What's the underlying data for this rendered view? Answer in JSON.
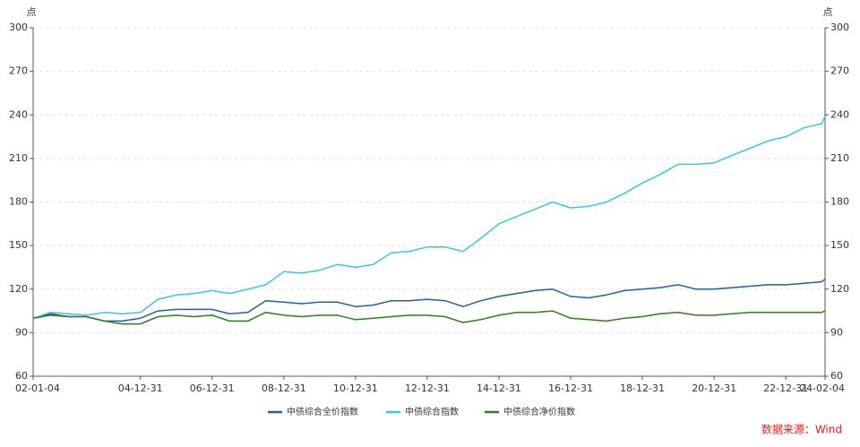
{
  "chart_data": {
    "type": "line",
    "y_label": "点",
    "y2_label": "点",
    "x": [
      "02-01-04",
      "02-06-30",
      "02-12-31",
      "03-06-30",
      "03-12-31",
      "04-06-30",
      "04-12-31",
      "05-06-30",
      "05-12-31",
      "06-06-30",
      "06-12-31",
      "07-06-30",
      "07-12-31",
      "08-06-30",
      "08-12-31",
      "09-06-30",
      "09-12-31",
      "10-06-30",
      "10-12-31",
      "11-06-30",
      "11-12-31",
      "12-06-30",
      "12-12-31",
      "13-06-30",
      "13-12-31",
      "14-06-30",
      "14-12-31",
      "15-06-30",
      "15-12-31",
      "16-06-30",
      "16-12-31",
      "17-06-30",
      "17-12-31",
      "18-06-30",
      "18-12-31",
      "19-06-30",
      "19-12-31",
      "20-06-30",
      "20-12-31",
      "21-06-30",
      "21-12-31",
      "22-06-30",
      "22-12-31",
      "23-06-30",
      "23-12-31",
      "24-02-04"
    ],
    "series": [
      {
        "name": "中债综合全价指数",
        "color": "#1f5fa6",
        "values": [
          100,
          103,
          101,
          101,
          98,
          98,
          100,
          105,
          106,
          106,
          106,
          103,
          104,
          112,
          111,
          110,
          111,
          111,
          108,
          109,
          112,
          112,
          113,
          112,
          108,
          112,
          115,
          117,
          119,
          120,
          115,
          114,
          116,
          119,
          120,
          121,
          123,
          120,
          120,
          121,
          122,
          123,
          123,
          124,
          125,
          127
        ]
      },
      {
        "name": "中债综合指数",
        "color": "#3cc6dc",
        "values": [
          100,
          104,
          103,
          102,
          104,
          103,
          104,
          113,
          116,
          117,
          119,
          117,
          120,
          123,
          132,
          131,
          133,
          137,
          135,
          137,
          145,
          146,
          149,
          149,
          146,
          155,
          165,
          170,
          175,
          180,
          176,
          177,
          180,
          186,
          193,
          199,
          206,
          206,
          207,
          212,
          217,
          222,
          225,
          231,
          234,
          239
        ]
      },
      {
        "name": "中债综合净价指数",
        "color": "#2e7d1e",
        "values": [
          100,
          102,
          101,
          101,
          98,
          96,
          96,
          101,
          102,
          101,
          102,
          98,
          98,
          104,
          102,
          101,
          102,
          102,
          99,
          100,
          101,
          102,
          102,
          101,
          97,
          99,
          102,
          104,
          104,
          105,
          100,
          99,
          98,
          100,
          101,
          103,
          104,
          102,
          102,
          103,
          104,
          104,
          104,
          104,
          104,
          105
        ]
      }
    ],
    "xlim": [
      "02-01-04",
      "24-02-04"
    ],
    "xticks": [
      "02-01-04",
      "04-12-31",
      "06-12-31",
      "08-12-31",
      "10-12-31",
      "12-12-31",
      "14-12-31",
      "16-12-31",
      "18-12-31",
      "20-12-31",
      "22-12-31",
      "24-02-04"
    ],
    "ylim": [
      60,
      300
    ],
    "yticks": [
      60,
      90,
      120,
      150,
      180,
      210,
      240,
      270,
      300
    ],
    "y2lim": [
      60,
      300
    ],
    "y2ticks": [
      60,
      90,
      120,
      150,
      180,
      210,
      240,
      270,
      300
    ],
    "grid": true,
    "legend": "bottom",
    "source": "数据来源：Wind"
  }
}
